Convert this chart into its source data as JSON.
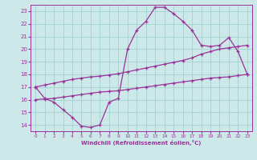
{
  "x": [
    0,
    1,
    2,
    3,
    4,
    5,
    6,
    7,
    8,
    9,
    10,
    11,
    12,
    13,
    14,
    15,
    16,
    17,
    18,
    19,
    20,
    21,
    22,
    23
  ],
  "line_temp": [
    17.0,
    16.1,
    15.8,
    15.2,
    14.6,
    13.9,
    13.8,
    14.0,
    15.8,
    16.1,
    20.0,
    21.5,
    22.2,
    23.3,
    23.3,
    22.8,
    22.2,
    21.5,
    20.3,
    20.2,
    20.3,
    20.9,
    19.8,
    18.0
  ],
  "line_upper": [
    17.0,
    17.15,
    17.3,
    17.45,
    17.6,
    17.7,
    17.8,
    17.85,
    17.95,
    18.05,
    18.2,
    18.35,
    18.5,
    18.65,
    18.8,
    18.95,
    19.1,
    19.3,
    19.6,
    19.8,
    20.0,
    20.1,
    20.2,
    20.3
  ],
  "line_lower": [
    16.0,
    16.05,
    16.1,
    16.2,
    16.3,
    16.4,
    16.5,
    16.6,
    16.65,
    16.7,
    16.8,
    16.9,
    17.0,
    17.1,
    17.2,
    17.3,
    17.4,
    17.5,
    17.6,
    17.7,
    17.75,
    17.8,
    17.9,
    18.0
  ],
  "color": "#993399",
  "bg_color": "#cce8e8",
  "grid_color": "#99cccc",
  "xlabel": "Windchill (Refroidissement éolien,°C)",
  "xlim": [
    -0.5,
    23.5
  ],
  "ylim": [
    13.5,
    23.5
  ],
  "yticks": [
    14,
    15,
    16,
    17,
    18,
    19,
    20,
    21,
    22,
    23
  ],
  "xticks": [
    0,
    1,
    2,
    3,
    4,
    5,
    6,
    7,
    8,
    9,
    10,
    11,
    12,
    13,
    14,
    15,
    16,
    17,
    18,
    19,
    20,
    21,
    22,
    23
  ]
}
